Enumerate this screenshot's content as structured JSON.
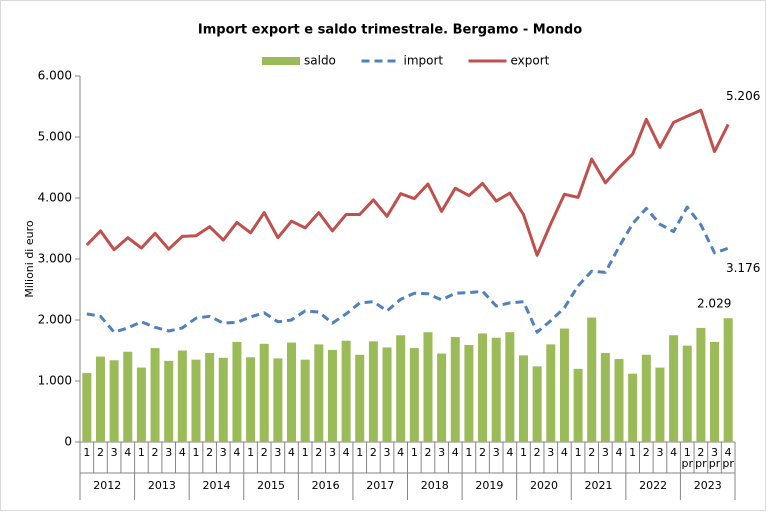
{
  "chart_data": {
    "type": "bar-line",
    "title": "Import export e saldo trimestrale. Bergamo - Mondo",
    "y_label": "Milioni di euro",
    "categories": [
      "1",
      "2",
      "3",
      "4",
      "1",
      "2",
      "3",
      "4",
      "1",
      "2",
      "3",
      "4",
      "1",
      "2",
      "3",
      "4",
      "1",
      "2",
      "3",
      "4",
      "1",
      "2",
      "3",
      "4",
      "1",
      "2",
      "3",
      "4",
      "1",
      "2",
      "3",
      "4",
      "1",
      "2",
      "3",
      "4",
      "1",
      "2",
      "3",
      "4",
      "1",
      "2",
      "3",
      "4",
      "1\npr",
      "2\npr",
      "3\npr",
      "4\npr"
    ],
    "years": [
      "2012",
      "2013",
      "2014",
      "2015",
      "2016",
      "2017",
      "2018",
      "2019",
      "2020",
      "2021",
      "2022",
      "2023"
    ],
    "ylim": [
      0,
      6000
    ],
    "yticks": [
      {
        "value": 0,
        "label": "0"
      },
      {
        "value": 1000,
        "label": "1.000"
      },
      {
        "value": 2000,
        "label": "2.000"
      },
      {
        "value": 3000,
        "label": "3.000"
      },
      {
        "value": 4000,
        "label": "4.000"
      },
      {
        "value": 5000,
        "label": "5.000"
      },
      {
        "value": 6000,
        "label": "6.000"
      }
    ],
    "legend": "top",
    "series": [
      {
        "name": "saldo",
        "kind": "bar",
        "color": "#9bbb59",
        "values": [
          1130,
          1400,
          1340,
          1480,
          1220,
          1540,
          1330,
          1500,
          1350,
          1460,
          1380,
          1640,
          1390,
          1610,
          1370,
          1630,
          1350,
          1600,
          1510,
          1660,
          1430,
          1650,
          1550,
          1750,
          1540,
          1800,
          1450,
          1720,
          1590,
          1780,
          1710,
          1800,
          1420,
          1240,
          1600,
          1860,
          1200,
          2040,
          1460,
          1360,
          1120,
          1430,
          1220,
          1750,
          1580,
          1870,
          1640,
          2029
        ],
        "value_labels": [
          null,
          null,
          null,
          null,
          null,
          null,
          null,
          null,
          null,
          null,
          null,
          null,
          null,
          null,
          null,
          null,
          null,
          null,
          null,
          null,
          null,
          null,
          null,
          null,
          null,
          null,
          null,
          null,
          null,
          null,
          null,
          null,
          null,
          null,
          null,
          null,
          null,
          null,
          null,
          null,
          null,
          null,
          null,
          null,
          null,
          null,
          null,
          "2.029"
        ]
      },
      {
        "name": "import",
        "kind": "dashed-line",
        "color": "#4f81bd",
        "values": [
          2100,
          2060,
          1800,
          1870,
          1970,
          1880,
          1820,
          1870,
          2030,
          2060,
          1950,
          1960,
          2050,
          2120,
          1970,
          2000,
          2150,
          2130,
          1950,
          2100,
          2280,
          2300,
          2150,
          2340,
          2440,
          2430,
          2330,
          2440,
          2450,
          2470,
          2230,
          2280,
          2300,
          1800,
          1990,
          2200,
          2560,
          2800,
          2780,
          3200,
          3580,
          3830,
          3570,
          3450,
          3850,
          3560,
          3100,
          3176
        ],
        "value_labels": [
          null,
          null,
          null,
          null,
          null,
          null,
          null,
          null,
          null,
          null,
          null,
          null,
          null,
          null,
          null,
          null,
          null,
          null,
          null,
          null,
          null,
          null,
          null,
          null,
          null,
          null,
          null,
          null,
          null,
          null,
          null,
          null,
          null,
          null,
          null,
          null,
          null,
          null,
          null,
          null,
          null,
          null,
          null,
          null,
          null,
          null,
          null,
          "3.176"
        ]
      },
      {
        "name": "export",
        "kind": "line",
        "color": "#c0504d",
        "values": [
          3230,
          3460,
          3150,
          3350,
          3180,
          3420,
          3160,
          3370,
          3380,
          3530,
          3310,
          3600,
          3430,
          3760,
          3350,
          3620,
          3510,
          3760,
          3460,
          3730,
          3730,
          3970,
          3700,
          4070,
          3990,
          4230,
          3780,
          4160,
          4040,
          4240,
          3950,
          4080,
          3730,
          3060,
          3580,
          4060,
          4010,
          4640,
          4250,
          4500,
          4720,
          5290,
          4830,
          5240,
          5340,
          5440,
          4760,
          5206
        ],
        "value_labels": [
          null,
          null,
          null,
          null,
          null,
          null,
          null,
          null,
          null,
          null,
          null,
          null,
          null,
          null,
          null,
          null,
          null,
          null,
          null,
          null,
          null,
          null,
          null,
          null,
          null,
          null,
          null,
          null,
          null,
          null,
          null,
          null,
          null,
          null,
          null,
          null,
          null,
          null,
          null,
          null,
          null,
          null,
          null,
          null,
          null,
          null,
          null,
          "5.206"
        ]
      }
    ]
  }
}
